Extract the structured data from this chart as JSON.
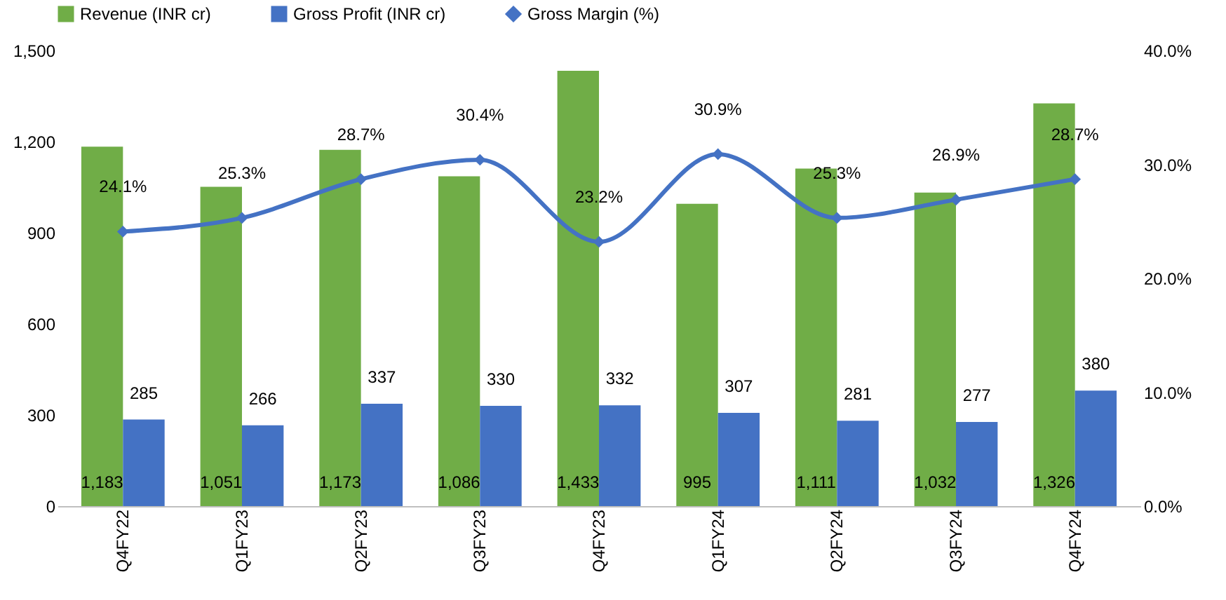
{
  "chart_data": {
    "type": "bar",
    "categories": [
      "Q4FY22",
      "Q1FY23",
      "Q2FY23",
      "Q3FY23",
      "Q4FY23",
      "Q1FY24",
      "Q2FY24",
      "Q3FY24",
      "Q4FY24"
    ],
    "series": [
      {
        "name": "Revenue (INR cr)",
        "color": "#70ad47",
        "values": [
          1183,
          1051,
          1173,
          1086,
          1433,
          995,
          1111,
          1032,
          1326
        ],
        "value_labels": [
          "1,183",
          "1,051",
          "1,173",
          "1,086",
          "1,433",
          "995",
          "1,111",
          "1,032",
          "1,326"
        ]
      },
      {
        "name": "Gross Profit (INR cr)",
        "color": "#4472c4",
        "values": [
          285,
          266,
          337,
          330,
          332,
          307,
          281,
          277,
          380
        ],
        "value_labels": [
          "285",
          "266",
          "337",
          "330",
          "332",
          "307",
          "281",
          "277",
          "380"
        ]
      },
      {
        "name": "Gross Margin (%)",
        "type": "line",
        "axis": "y2",
        "color": "#4472c4",
        "marker": "diamond",
        "values": [
          24.1,
          25.3,
          28.7,
          30.4,
          23.2,
          30.9,
          25.3,
          26.9,
          28.7
        ],
        "value_labels": [
          "24.1%",
          "25.3%",
          "28.7%",
          "30.4%",
          "23.2%",
          "30.9%",
          "25.3%",
          "26.9%",
          "28.7%"
        ]
      }
    ],
    "ylim": [
      0,
      1500
    ],
    "yticks": [
      0,
      300,
      600,
      900,
      {
        "value": 1200,
        "label": "1,200"
      },
      {
        "value": 1500,
        "label": "1,500"
      }
    ],
    "y2lim": [
      0,
      40
    ],
    "y2ticks": [
      {
        "value": 0,
        "label": "0.0%"
      },
      {
        "value": 10,
        "label": "10.0%"
      },
      {
        "value": 20,
        "label": "20.0%"
      },
      {
        "value": 30,
        "label": "30.0%"
      },
      {
        "value": 40,
        "label": "40.0%"
      }
    ],
    "legend": "top",
    "grid": false
  }
}
